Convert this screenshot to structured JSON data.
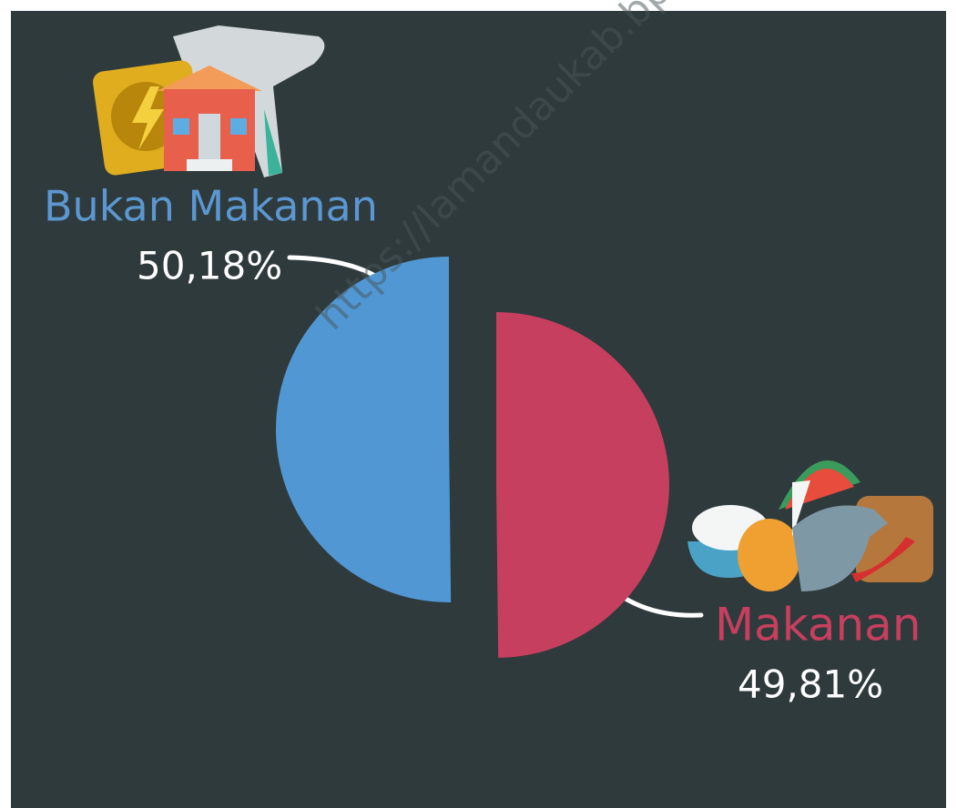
{
  "chart_data": {
    "type": "pie",
    "categories": [
      "Bukan Makanan",
      "Makanan"
    ],
    "values": [
      50.18,
      49.81
    ],
    "value_labels": [
      "50,18%",
      "49,81%"
    ],
    "colors": [
      "#5097d4",
      "#c63f5e"
    ],
    "watermark": "https://lamandaukab.bps.go.id"
  }
}
